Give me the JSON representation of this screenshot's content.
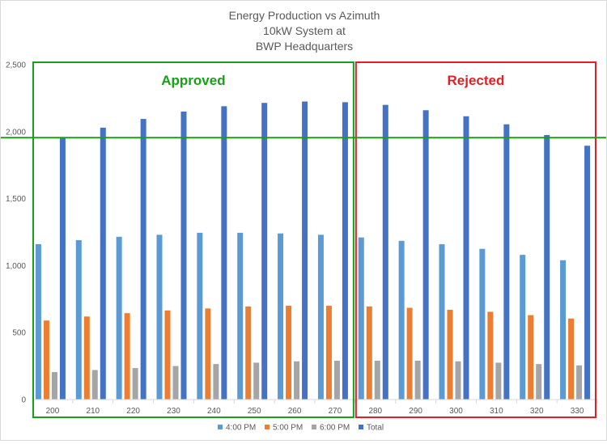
{
  "chart_data": {
    "type": "bar",
    "title_lines": [
      "Energy Production vs Azimuth",
      "10kW System at",
      "BWP Headquarters"
    ],
    "xlabel": "",
    "ylabel": "",
    "categories": [
      "200",
      "210",
      "220",
      "230",
      "240",
      "250",
      "260",
      "270",
      "280",
      "290",
      "300",
      "310",
      "320",
      "330"
    ],
    "ylim": [
      0,
      2500
    ],
    "yticks": [
      "0",
      "500",
      "1,000",
      "1,500",
      "2,000",
      "2,500"
    ],
    "ytick_values": [
      0,
      500,
      1000,
      1500,
      2000,
      2500
    ],
    "grid": false,
    "legend_position": "bottom",
    "series": [
      {
        "name": "4:00 PM",
        "color": "#5B9BD5",
        "values": [
          1160,
          1190,
          1215,
          1230,
          1245,
          1245,
          1240,
          1230,
          1210,
          1185,
          1160,
          1125,
          1080,
          1040
        ]
      },
      {
        "name": "5:00 PM",
        "color": "#ED7D31",
        "values": [
          590,
          620,
          645,
          665,
          680,
          695,
          700,
          700,
          695,
          685,
          670,
          655,
          630,
          605
        ]
      },
      {
        "name": "6:00 PM",
        "color": "#A5A5A5",
        "values": [
          205,
          220,
          235,
          250,
          265,
          275,
          285,
          290,
          290,
          290,
          285,
          275,
          265,
          255
        ]
      },
      {
        "name": "Total",
        "color": "#4472C4",
        "values": [
          1955,
          2030,
          2095,
          2150,
          2190,
          2215,
          2225,
          2220,
          2200,
          2160,
          2115,
          2055,
          1975,
          1895
        ]
      }
    ],
    "threshold_line": {
      "value": 1955,
      "color": "#16A116"
    },
    "annotations": [
      {
        "label": "Approved",
        "color": "#16A116",
        "first_category": "200",
        "last_category": "270"
      },
      {
        "label": "Rejected",
        "color": "#E31E24",
        "first_category": "280",
        "last_category": "330"
      }
    ]
  }
}
